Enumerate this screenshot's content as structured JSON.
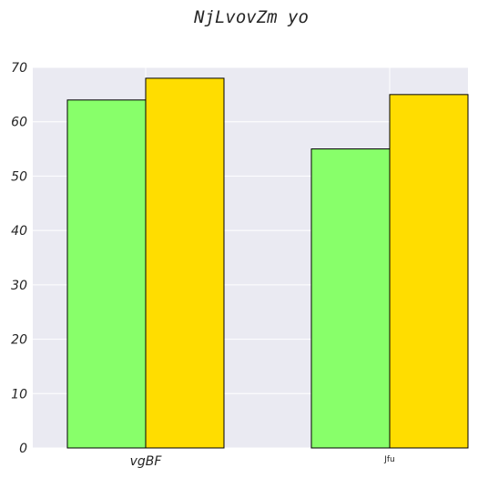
{
  "chart_data": {
    "type": "bar",
    "title": "NjLvovZm yo",
    "xlabel": "",
    "ylabel": "",
    "categories": [
      "vgBF",
      "Jfu"
    ],
    "series": [
      {
        "values": [
          64,
          55
        ],
        "color": "#88ff6a"
      },
      {
        "values": [
          68,
          65
        ],
        "color": "#ffdd00"
      }
    ],
    "ylim": [
      0,
      70
    ],
    "yticks": [
      0,
      10,
      20,
      30,
      40,
      50,
      60,
      70
    ],
    "grid": true,
    "background": "#eaeaf2",
    "edge_color": "#000000"
  }
}
